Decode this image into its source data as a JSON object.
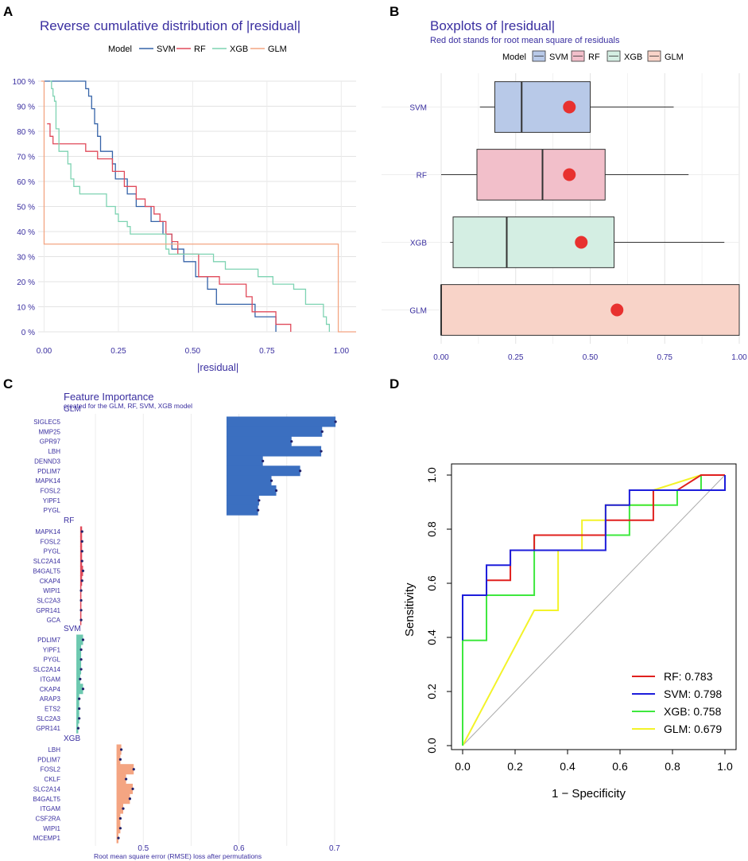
{
  "panel_labels": [
    "A",
    "B",
    "C",
    "D"
  ],
  "chart_data": [
    {
      "type": "line",
      "panel": "A",
      "title": "Reverse cumulative distribution of |residual|",
      "xlabel": "|residual|",
      "ylabel": "",
      "legend_title": "Model",
      "legend_position": "top",
      "xlim": [
        -0.02,
        1.05
      ],
      "ylim": [
        0,
        100
      ],
      "x_ticks": [
        "0.00",
        "0.25",
        "0.50",
        "0.75",
        "1.00"
      ],
      "y_ticks": [
        "0 %",
        "10 %",
        "20 %",
        "30 %",
        "40 %",
        "50 %",
        "60 %",
        "70 %",
        "80 %",
        "90 %",
        "100 %"
      ],
      "series": [
        {
          "name": "SVM",
          "color": "#3563a8",
          "steps": [
            [
              0,
              100
            ],
            [
              0.13,
              100
            ],
            [
              0.14,
              97
            ],
            [
              0.15,
              94
            ],
            [
              0.16,
              89
            ],
            [
              0.17,
              83
            ],
            [
              0.18,
              78
            ],
            [
              0.19,
              72
            ],
            [
              0.22,
              72
            ],
            [
              0.23,
              67
            ],
            [
              0.24,
              61
            ],
            [
              0.27,
              61
            ],
            [
              0.28,
              55
            ],
            [
              0.3,
              55
            ],
            [
              0.31,
              50
            ],
            [
              0.35,
              50
            ],
            [
              0.36,
              44
            ],
            [
              0.39,
              44
            ],
            [
              0.4,
              39
            ],
            [
              0.42,
              39
            ],
            [
              0.43,
              33
            ],
            [
              0.46,
              33
            ],
            [
              0.47,
              28
            ],
            [
              0.5,
              28
            ],
            [
              0.51,
              22
            ],
            [
              0.54,
              22
            ],
            [
              0.55,
              17
            ],
            [
              0.57,
              17
            ],
            [
              0.58,
              11
            ],
            [
              0.7,
              11
            ],
            [
              0.71,
              6
            ],
            [
              0.77,
              6
            ],
            [
              0.78,
              0
            ]
          ]
        },
        {
          "name": "RF",
          "color": "#e04a5a",
          "steps": [
            [
              0.01,
              83
            ],
            [
              0.02,
              78
            ],
            [
              0.03,
              75
            ],
            [
              0.13,
              75
            ],
            [
              0.14,
              72
            ],
            [
              0.17,
              72
            ],
            [
              0.18,
              69
            ],
            [
              0.22,
              69
            ],
            [
              0.23,
              64
            ],
            [
              0.26,
              64
            ],
            [
              0.27,
              58
            ],
            [
              0.3,
              58
            ],
            [
              0.31,
              53
            ],
            [
              0.33,
              53
            ],
            [
              0.34,
              50
            ],
            [
              0.36,
              50
            ],
            [
              0.37,
              47
            ],
            [
              0.38,
              47
            ],
            [
              0.39,
              44
            ],
            [
              0.4,
              44
            ],
            [
              0.41,
              39
            ],
            [
              0.42,
              39
            ],
            [
              0.43,
              36
            ],
            [
              0.44,
              36
            ],
            [
              0.45,
              31
            ],
            [
              0.51,
              31
            ],
            [
              0.52,
              22
            ],
            [
              0.58,
              22
            ],
            [
              0.59,
              19
            ],
            [
              0.67,
              19
            ],
            [
              0.68,
              14
            ],
            [
              0.69,
              14
            ],
            [
              0.7,
              8
            ],
            [
              0.77,
              8
            ],
            [
              0.78,
              3
            ],
            [
              0.82,
              3
            ],
            [
              0.83,
              0
            ]
          ]
        },
        {
          "name": "XGB",
          "color": "#7ed3b2",
          "steps": [
            [
              0.02,
              100
            ],
            [
              0.025,
              97
            ],
            [
              0.03,
              94
            ],
            [
              0.035,
              92
            ],
            [
              0.04,
              81
            ],
            [
              0.05,
              72
            ],
            [
              0.08,
              67
            ],
            [
              0.09,
              61
            ],
            [
              0.1,
              58
            ],
            [
              0.12,
              55
            ],
            [
              0.2,
              55
            ],
            [
              0.21,
              50
            ],
            [
              0.23,
              50
            ],
            [
              0.24,
              47
            ],
            [
              0.25,
              44
            ],
            [
              0.27,
              44
            ],
            [
              0.28,
              42
            ],
            [
              0.29,
              39
            ],
            [
              0.4,
              39
            ],
            [
              0.41,
              33
            ],
            [
              0.42,
              31
            ],
            [
              0.56,
              31
            ],
            [
              0.57,
              28
            ],
            [
              0.6,
              28
            ],
            [
              0.61,
              25
            ],
            [
              0.71,
              25
            ],
            [
              0.72,
              22
            ],
            [
              0.76,
              22
            ],
            [
              0.77,
              19
            ],
            [
              0.83,
              19
            ],
            [
              0.84,
              17
            ],
            [
              0.87,
              17
            ],
            [
              0.88,
              11
            ],
            [
              0.93,
              11
            ],
            [
              0.94,
              6
            ],
            [
              0.95,
              3
            ],
            [
              0.96,
              0
            ]
          ]
        },
        {
          "name": "GLM",
          "color": "#f4a582",
          "steps": [
            [
              -0.01,
              100
            ],
            [
              0.0,
              100
            ],
            [
              0.0,
              35
            ],
            [
              0.99,
              35
            ],
            [
              0.99,
              0
            ],
            [
              1.05,
              0
            ]
          ]
        }
      ]
    },
    {
      "type": "box",
      "panel": "B",
      "title": "Boxplots of |residual|",
      "subtitle": "Red dot stands for root mean square of residuals",
      "legend_title": "Model",
      "legend_position": "top",
      "xlim": [
        0,
        1
      ],
      "x_ticks": [
        "0.00",
        "0.25",
        "0.50",
        "0.75",
        "1.00"
      ],
      "categories": [
        "SVM",
        "RF",
        "XGB",
        "GLM"
      ],
      "boxes": [
        {
          "name": "SVM",
          "min": 0.13,
          "q1": 0.18,
          "median": 0.27,
          "q3": 0.5,
          "max": 0.78,
          "rmse": 0.43,
          "fill": "#b8c9e8"
        },
        {
          "name": "RF",
          "min": 0.0,
          "q1": 0.12,
          "median": 0.34,
          "q3": 0.55,
          "max": 0.83,
          "rmse": 0.43,
          "fill": "#f2bfca"
        },
        {
          "name": "XGB",
          "min": 0.03,
          "q1": 0.04,
          "median": 0.22,
          "q3": 0.58,
          "max": 0.95,
          "rmse": 0.47,
          "fill": "#d4eee3"
        },
        {
          "name": "GLM",
          "min": 0.0,
          "q1": 0.0,
          "median": 0.0,
          "q3": 1.0,
          "max": 1.0,
          "rmse": 0.59,
          "fill": "#f8d3c8"
        }
      ],
      "legend_items": [
        "SVM",
        "RF",
        "XGB",
        "GLM"
      ]
    },
    {
      "type": "bar",
      "panel": "C",
      "title": "Feature Importance",
      "subtitle": "created for the GLM, RF, SVM, XGB model",
      "xlabel": "Root mean square error (RMSE) loss after permutations",
      "x_ticks": [
        "0.5",
        "0.6",
        "0.7"
      ],
      "xlim": [
        0.415,
        0.72
      ],
      "groups": [
        {
          "name": "GLM",
          "baseline": 0.587,
          "color": "#3b6fc0",
          "features": [
            "SIGLEC5",
            "MMP25",
            "GPR97",
            "LBH",
            "DENND3",
            "PDLIM7",
            "MAPK14",
            "FOSL2",
            "YIPF1",
            "PYGL"
          ],
          "values": [
            0.701,
            0.687,
            0.655,
            0.686,
            0.625,
            0.664,
            0.634,
            0.639,
            0.621,
            0.62
          ]
        },
        {
          "name": "RF",
          "baseline": 0.434,
          "color": "#e04a5a",
          "features": [
            "MAPK14",
            "FOSL2",
            "PYGL",
            "SLC2A14",
            "B4GALT5",
            "CKAP4",
            "WIPI1",
            "SLC2A3",
            "GPR141",
            "GCA"
          ],
          "values": [
            0.436,
            0.436,
            0.436,
            0.436,
            0.437,
            0.436,
            0.435,
            0.435,
            0.435,
            0.435
          ]
        },
        {
          "name": "SVM",
          "baseline": 0.43,
          "color": "#6dc9b0",
          "features": [
            "PDLIM7",
            "YIPF1",
            "PYGL",
            "SLC2A14",
            "ITGAM",
            "CKAP4",
            "ARAP3",
            "ETS2",
            "SLC2A3",
            "GPR141"
          ],
          "values": [
            0.437,
            0.435,
            0.435,
            0.435,
            0.434,
            0.437,
            0.433,
            0.433,
            0.433,
            0.432
          ]
        },
        {
          "name": "XGB",
          "baseline": 0.472,
          "color": "#f4a582",
          "features": [
            "LBH",
            "PDLIM7",
            "FOSL2",
            "CKLF",
            "SLC2A14",
            "B4GALT5",
            "ITGAM",
            "CSF2RA",
            "WIPI1",
            "MCEMP1"
          ],
          "values": [
            0.477,
            0.476,
            0.49,
            0.482,
            0.489,
            0.486,
            0.479,
            0.476,
            0.476,
            0.474
          ]
        }
      ]
    },
    {
      "type": "line",
      "panel": "D",
      "title": "",
      "xlabel": "1 − Specificity",
      "ylabel": "Sensitivity",
      "xlim": [
        0,
        1
      ],
      "ylim": [
        0,
        1
      ],
      "x_ticks": [
        "0.0",
        "0.2",
        "0.4",
        "0.6",
        "0.8",
        "1.0"
      ],
      "y_ticks": [
        "0.0",
        "0.2",
        "0.4",
        "0.6",
        "0.8",
        "1.0"
      ],
      "legend_position": "bottom-right",
      "series": [
        {
          "name": "RF",
          "label": "RF: 0.783",
          "color": "#e0201e",
          "points": [
            [
              0,
              0.39
            ],
            [
              0,
              0.556
            ],
            [
              0.091,
              0.556
            ],
            [
              0.091,
              0.611
            ],
            [
              0.182,
              0.611
            ],
            [
              0.182,
              0.722
            ],
            [
              0.273,
              0.722
            ],
            [
              0.273,
              0.778
            ],
            [
              0.545,
              0.778
            ],
            [
              0.545,
              0.833
            ],
            [
              0.727,
              0.833
            ],
            [
              0.727,
              0.944
            ],
            [
              0.818,
              0.944
            ],
            [
              0.909,
              1
            ],
            [
              1,
              1
            ]
          ]
        },
        {
          "name": "SVM",
          "label": "SVM: 0.798",
          "color": "#1d1ddb",
          "points": [
            [
              0,
              0.389
            ],
            [
              0,
              0.556
            ],
            [
              0.091,
              0.556
            ],
            [
              0.091,
              0.667
            ],
            [
              0.182,
              0.667
            ],
            [
              0.182,
              0.722
            ],
            [
              0.455,
              0.722
            ],
            [
              0.545,
              0.722
            ],
            [
              0.545,
              0.889
            ],
            [
              0.636,
              0.889
            ],
            [
              0.636,
              0.944
            ],
            [
              0.909,
              0.944
            ],
            [
              1,
              0.944
            ],
            [
              1,
              1
            ]
          ]
        },
        {
          "name": "XGB",
          "label": "XGB: 0.758",
          "color": "#3ee83e",
          "points": [
            [
              0,
              0
            ],
            [
              0,
              0.389
            ],
            [
              0.091,
              0.389
            ],
            [
              0.091,
              0.556
            ],
            [
              0.273,
              0.556
            ],
            [
              0.273,
              0.778
            ],
            [
              0.636,
              0.778
            ],
            [
              0.636,
              0.889
            ],
            [
              0.818,
              0.889
            ],
            [
              0.818,
              0.944
            ],
            [
              0.909,
              0.944
            ],
            [
              0.909,
              1
            ],
            [
              1,
              1
            ]
          ]
        },
        {
          "name": "GLM",
          "label": "GLM: 0.679",
          "color": "#f3f329",
          "points": [
            [
              0,
              0
            ],
            [
              0.273,
              0.5
            ],
            [
              0.364,
              0.5
            ],
            [
              0.364,
              0.722
            ],
            [
              0.455,
              0.722
            ],
            [
              0.455,
              0.833
            ],
            [
              0.545,
              0.833
            ],
            [
              0.545,
              0.889
            ],
            [
              0.727,
              0.889
            ],
            [
              0.727,
              0.944
            ],
            [
              0.909,
              1
            ],
            [
              1,
              1
            ]
          ]
        }
      ]
    }
  ]
}
